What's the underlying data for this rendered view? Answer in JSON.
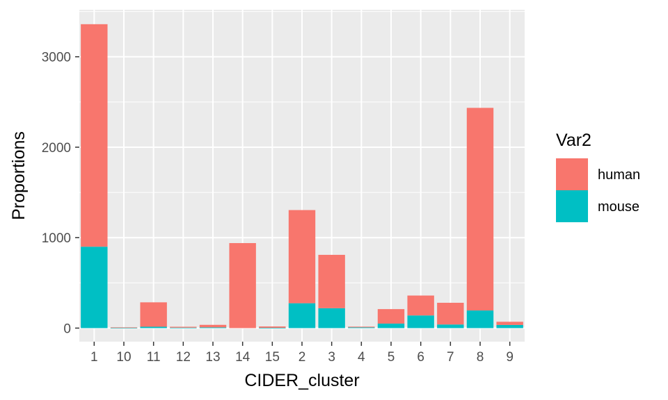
{
  "chart_data": {
    "type": "bar",
    "stacked": true,
    "xlabel": "CIDER_cluster",
    "ylabel": "Proportions",
    "categories": [
      "1",
      "10",
      "11",
      "12",
      "13",
      "14",
      "15",
      "2",
      "3",
      "4",
      "5",
      "6",
      "7",
      "8",
      "9"
    ],
    "series": [
      {
        "name": "human",
        "color": "#F8766D",
        "values": [
          2460,
          5,
          270,
          10,
          28,
          940,
          15,
          1030,
          590,
          8,
          160,
          220,
          240,
          2240,
          35
        ]
      },
      {
        "name": "mouse",
        "color": "#00BFC4",
        "values": [
          900,
          3,
          15,
          5,
          8,
          0,
          3,
          275,
          220,
          8,
          50,
          140,
          40,
          195,
          35
        ]
      }
    ],
    "ylim": [
      -150,
      3520
    ],
    "yticks": [
      0,
      1000,
      2000,
      3000
    ],
    "yticklabels": [
      "0",
      "1000",
      "2000",
      "3000"
    ],
    "grid": true,
    "legend": {
      "title": "Var2",
      "position": "right"
    }
  }
}
